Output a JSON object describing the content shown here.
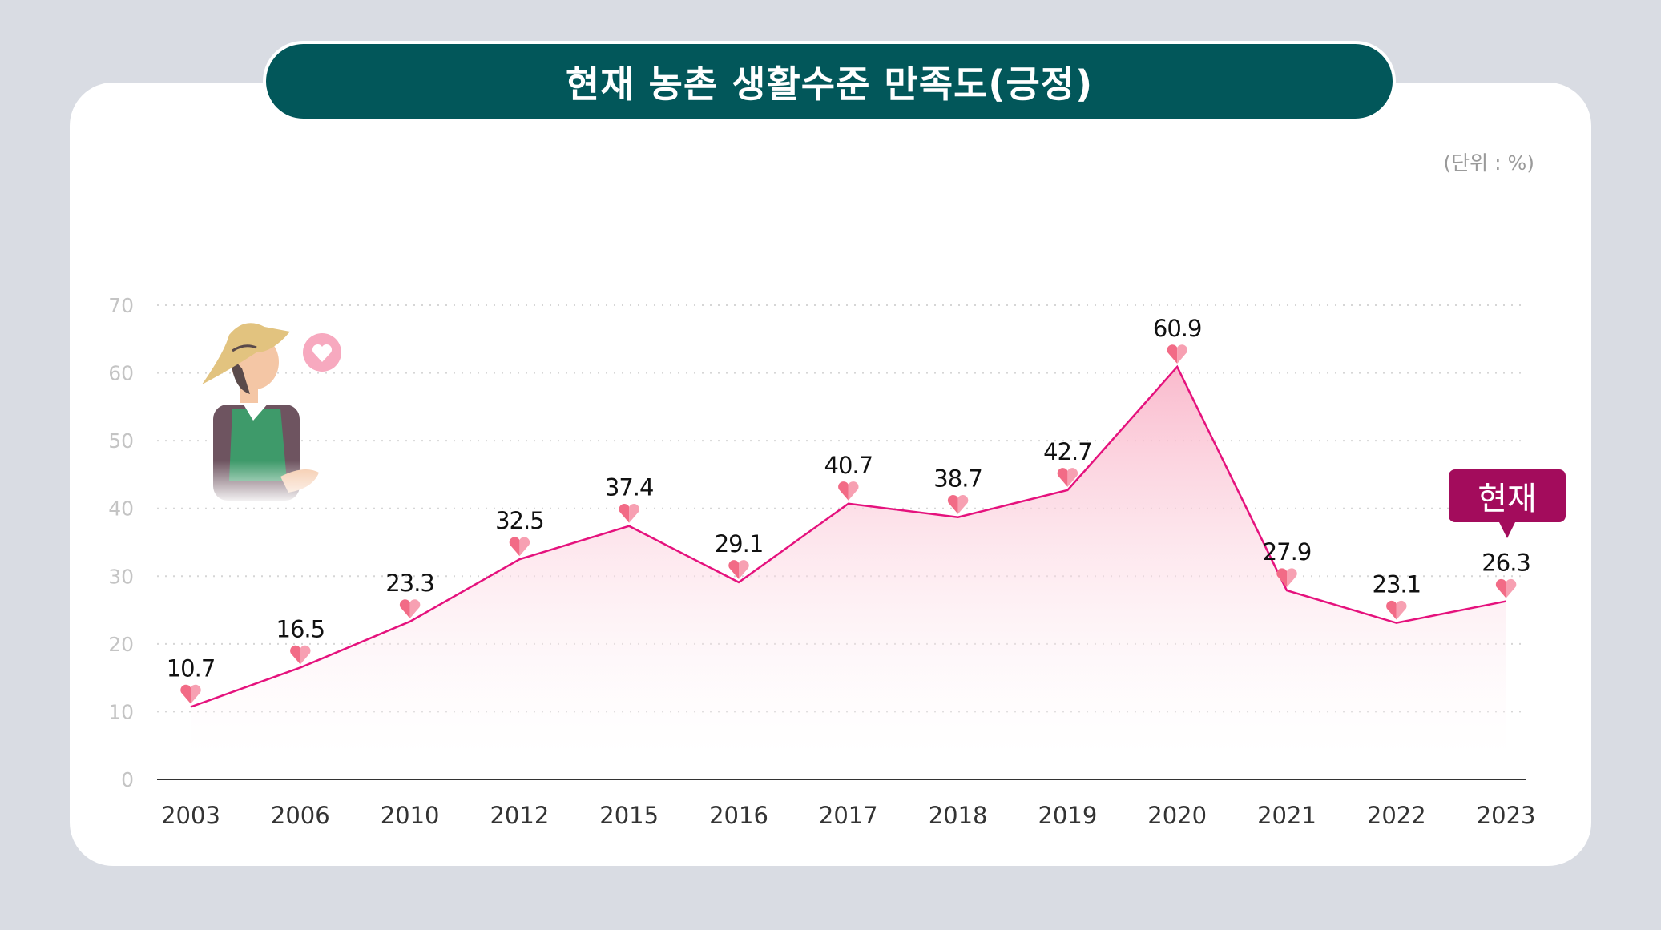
{
  "title": "현재 농촌 생활수준 만족도(긍정)",
  "unit_label": "(단위 : %)",
  "badge_label": "현재",
  "colors": {
    "background": "#d9dce3",
    "title_bg": "#02575a",
    "line": "#e5127d",
    "fill": "#fbc3d3",
    "heart": "#f26b86",
    "badge": "#a30c5c"
  },
  "chart_data": {
    "type": "area",
    "title": "현재 농촌 생활수준 만족도(긍정)",
    "xlabel": "",
    "ylabel": "",
    "unit": "%",
    "categories": [
      "2003",
      "2006",
      "2010",
      "2012",
      "2015",
      "2016",
      "2017",
      "2018",
      "2019",
      "2020",
      "2021",
      "2022",
      "2023"
    ],
    "values": [
      10.7,
      16.5,
      23.3,
      32.5,
      37.4,
      29.1,
      40.7,
      38.7,
      42.7,
      60.9,
      27.9,
      23.1,
      26.3
    ],
    "data_labels": [
      "10.7",
      "16.5",
      "23.3",
      "32.5",
      "37.4",
      "29.1",
      "40.7",
      "38.7",
      "42.7",
      "60.9",
      "27.9",
      "23.1",
      "26.3"
    ],
    "ylim": [
      0,
      70
    ],
    "yticks": [
      "0",
      "10",
      "20",
      "30",
      "40",
      "50",
      "60",
      "70"
    ],
    "grid": true,
    "legend": "none",
    "highlight": {
      "category": "2023",
      "label": "현재"
    }
  }
}
